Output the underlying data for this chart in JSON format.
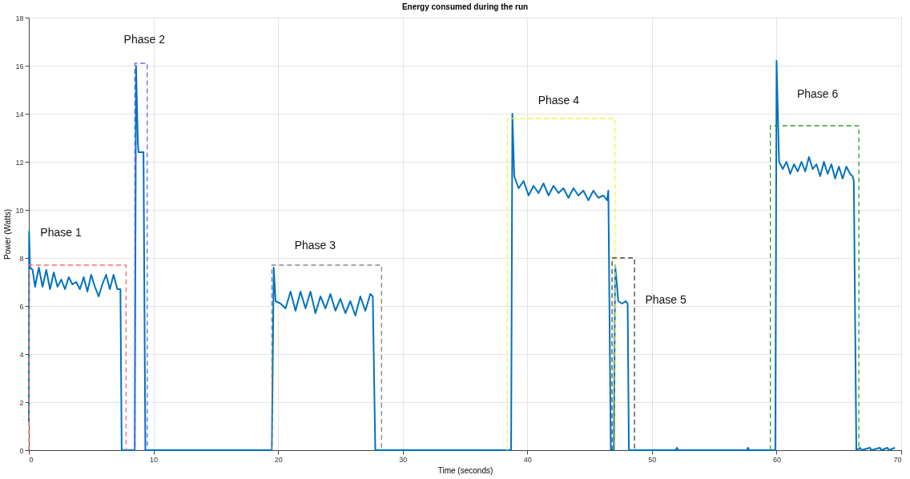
{
  "chart_data": {
    "type": "line",
    "title": "Energy consumed during the run",
    "xlabel": "Time (seconds)",
    "ylabel": "Power (Watts)",
    "xlim": [
      0,
      70
    ],
    "xticks": [
      0,
      10,
      20,
      30,
      40,
      50,
      60,
      70
    ],
    "ylim": [
      0,
      18
    ],
    "yticks": [
      0,
      2,
      4,
      6,
      8,
      10,
      12,
      14,
      16,
      18
    ],
    "grid": true,
    "line_style": "solid",
    "series": [
      {
        "color": "#0072bd",
        "x": [
          0,
          0.02,
          0.1,
          0.3,
          0.5,
          0.8,
          1.1,
          1.4,
          1.7,
          2.0,
          2.3,
          2.6,
          2.9,
          3.2,
          3.5,
          3.8,
          4.1,
          4.4,
          4.7,
          5.0,
          5.3,
          5.6,
          5.9,
          6.2,
          6.5,
          6.8,
          7.1,
          7.35,
          7.45,
          8.5,
          8.6,
          8.75,
          8.8,
          9.2,
          9.35,
          19.5,
          19.65,
          19.8,
          20.2,
          20.6,
          21.0,
          21.4,
          21.8,
          22.2,
          22.6,
          23.0,
          23.4,
          23.8,
          24.2,
          24.6,
          25.0,
          25.4,
          25.8,
          26.2,
          26.6,
          27.0,
          27.4,
          27.6,
          27.8,
          38.7,
          38.8,
          38.95,
          39.3,
          39.7,
          40.1,
          40.5,
          40.9,
          41.3,
          41.7,
          42.1,
          42.5,
          42.9,
          43.3,
          43.7,
          44.1,
          44.5,
          44.9,
          45.3,
          45.7,
          46.1,
          46.4,
          46.5,
          46.7,
          46.95,
          47.05,
          47.3,
          47.6,
          47.9,
          48.05,
          48.15,
          51.9,
          52.0,
          52.1,
          57.6,
          57.7,
          57.8,
          59.9,
          60.0,
          60.2,
          60.5,
          60.8,
          61.1,
          61.4,
          61.7,
          62.0,
          62.3,
          62.6,
          62.9,
          63.2,
          63.5,
          63.8,
          64.1,
          64.4,
          64.7,
          65.0,
          65.3,
          65.6,
          65.9,
          66.1,
          66.2,
          66.4,
          66.7,
          66.8,
          67.5,
          67.6,
          68.3,
          68.4,
          68.9,
          69.0,
          69.5
        ],
        "values": [
          1.2,
          9.1,
          7.6,
          7.5,
          6.8,
          7.6,
          6.8,
          7.5,
          6.7,
          7.4,
          6.8,
          7.1,
          6.7,
          7.2,
          6.9,
          7.0,
          6.7,
          7.2,
          6.6,
          7.3,
          6.8,
          6.4,
          6.9,
          7.3,
          6.7,
          7.3,
          6.7,
          6.7,
          0,
          0,
          16.0,
          12.8,
          12.4,
          12.4,
          0,
          0,
          7.6,
          6.2,
          6.1,
          5.9,
          6.6,
          5.8,
          6.6,
          5.9,
          6.6,
          5.7,
          6.4,
          5.9,
          6.5,
          5.8,
          6.3,
          5.7,
          6.2,
          5.6,
          6.4,
          5.8,
          6.5,
          6.4,
          0,
          0,
          14.0,
          11.4,
          10.9,
          11.2,
          10.6,
          11.0,
          10.7,
          11.1,
          10.6,
          11.0,
          10.7,
          10.9,
          10.5,
          10.9,
          10.6,
          10.8,
          10.4,
          10.8,
          10.5,
          10.6,
          10.4,
          10.8,
          0,
          0,
          7.7,
          6.2,
          6.1,
          6.2,
          6.1,
          0,
          0,
          0.1,
          0,
          0,
          0.1,
          0,
          0,
          16.2,
          12.0,
          11.7,
          12.0,
          11.5,
          11.9,
          11.6,
          12.0,
          11.6,
          12.2,
          11.7,
          11.9,
          11.4,
          12.0,
          11.5,
          11.9,
          11.3,
          11.8,
          11.3,
          11.8,
          11.5,
          11.4,
          11.2,
          0,
          0.1,
          0,
          0.1,
          0,
          0.1,
          0,
          0.1,
          0,
          0.1
        ]
      },
      {
        "name": "Phase 1",
        "color": "#ff6b6b",
        "line_style": "dashed",
        "x": [
          0,
          0,
          7.8,
          7.8
        ],
        "values": [
          0,
          7.7,
          7.7,
          0
        ]
      },
      {
        "name": "Phase 2",
        "color": "#6666ff",
        "line_style": "dashed",
        "x": [
          8.5,
          8.5,
          9.5,
          9.5
        ],
        "values": [
          0,
          16.1,
          16.1,
          0
        ]
      },
      {
        "name": "Phase 3",
        "color": "#888888",
        "line_style": "dashed",
        "x": [
          19.5,
          19.5,
          28.3,
          28.3
        ],
        "values": [
          0,
          7.7,
          7.7,
          0
        ]
      },
      {
        "name": "Phase 4",
        "color": "#f5f53c",
        "line_style": "dashed",
        "x": [
          38.4,
          38.4,
          47.05,
          47.05
        ],
        "values": [
          0,
          13.8,
          13.8,
          0
        ]
      },
      {
        "name": "Phase 5",
        "color": "#444444",
        "line_style": "dashed",
        "x": [
          46.8,
          46.8,
          48.6,
          48.6
        ],
        "values": [
          0,
          8.0,
          8.0,
          0
        ]
      },
      {
        "name": "Phase 6",
        "color": "#2ca02c",
        "line_style": "dashed",
        "x": [
          59.5,
          59.5,
          66.6,
          66.6
        ],
        "values": [
          0,
          13.5,
          13.5,
          0
        ]
      }
    ]
  }
}
